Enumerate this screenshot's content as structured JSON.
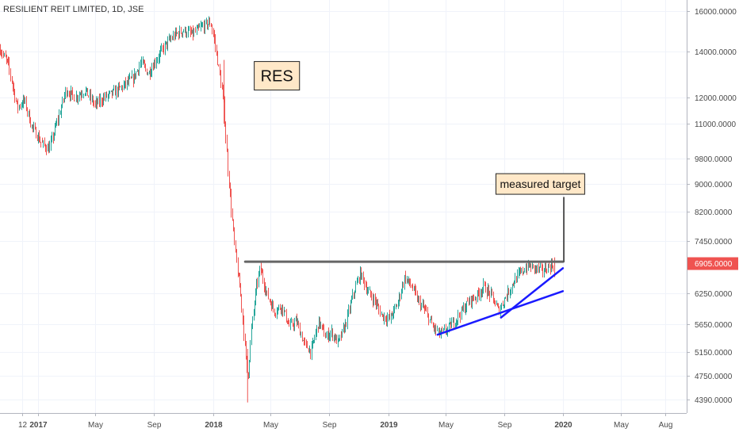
{
  "chart_data": {
    "type": "candlestick",
    "title": "RESILIENT REIT LIMITED, 1D, JSE",
    "y_scale": "log",
    "ylim": [
      4200,
      16600
    ],
    "y_ticks": [
      "16000.0000",
      "14000.0000",
      "12000.0000",
      "11000.0000",
      "9800.0000",
      "9000.0000",
      "8200.0000",
      "7450.0000",
      "6250.0000",
      "5650.0000",
      "5150.0000",
      "4750.0000",
      "4390.0000"
    ],
    "y_tick_values": [
      16000,
      14000,
      12000,
      11000,
      9800,
      9000,
      8200,
      7450,
      6250,
      5650,
      5150,
      4750,
      4390
    ],
    "x_ticks": [
      "12",
      "2017",
      "May",
      "Sep",
      "2018",
      "May",
      "Sep",
      "2019",
      "May",
      "Sep",
      "2020",
      "May",
      "Aug"
    ],
    "x_tick_dates": [
      "2016-12-01",
      "2017-01-02",
      "2017-05-01",
      "2017-09-01",
      "2018-01-02",
      "2018-05-01",
      "2018-09-01",
      "2019-01-02",
      "2019-05-01",
      "2019-09-01",
      "2020-01-02",
      "2020-05-01",
      "2020-08-01"
    ],
    "x_range": [
      "2016-10-15",
      "2020-09-15"
    ],
    "last_price": {
      "label": "6905.0000",
      "value": 6905,
      "color": "#ef5350"
    },
    "up_color": "#26a69a",
    "down_color": "#ef5350",
    "price_path": [
      [
        "2016-10-15",
        14100
      ],
      [
        "2016-11-01",
        13400
      ],
      [
        "2016-11-20",
        11600
      ],
      [
        "2016-12-05",
        11900
      ],
      [
        "2016-12-20",
        10900
      ],
      [
        "2017-01-10",
        10300
      ],
      [
        "2017-01-25",
        10100
      ],
      [
        "2017-02-15",
        11300
      ],
      [
        "2017-03-01",
        12300
      ],
      [
        "2017-03-20",
        12000
      ],
      [
        "2017-04-10",
        12300
      ],
      [
        "2017-05-01",
        11700
      ],
      [
        "2017-05-20",
        12000
      ],
      [
        "2017-06-10",
        12200
      ],
      [
        "2017-07-01",
        12500
      ],
      [
        "2017-07-20",
        12800
      ],
      [
        "2017-08-05",
        13500
      ],
      [
        "2017-08-20",
        13000
      ],
      [
        "2017-09-05",
        13600
      ],
      [
        "2017-09-25",
        14300
      ],
      [
        "2017-10-15",
        14800
      ],
      [
        "2017-11-01",
        15000
      ],
      [
        "2017-11-20",
        14800
      ],
      [
        "2017-12-10",
        15200
      ],
      [
        "2017-12-28",
        15400
      ],
      [
        "2018-01-05",
        14500
      ],
      [
        "2018-01-15",
        13000
      ],
      [
        "2018-01-25",
        11600
      ],
      [
        "2018-02-01",
        9700
      ],
      [
        "2018-02-08",
        8400
      ],
      [
        "2018-02-15",
        7400
      ],
      [
        "2018-02-22",
        6700
      ],
      [
        "2018-03-01",
        6200
      ],
      [
        "2018-03-08",
        5400
      ],
      [
        "2018-03-15",
        4700
      ],
      [
        "2018-03-22",
        5500
      ],
      [
        "2018-04-01",
        6300
      ],
      [
        "2018-04-10",
        6800
      ],
      [
        "2018-04-25",
        6200
      ],
      [
        "2018-05-10",
        5900
      ],
      [
        "2018-05-25",
        6000
      ],
      [
        "2018-06-10",
        5600
      ],
      [
        "2018-06-25",
        5700
      ],
      [
        "2018-07-10",
        5300
      ],
      [
        "2018-07-25",
        5150
      ],
      [
        "2018-08-10",
        5700
      ],
      [
        "2018-08-25",
        5400
      ],
      [
        "2018-09-05",
        5500
      ],
      [
        "2018-09-20",
        5300
      ],
      [
        "2018-10-05",
        5650
      ],
      [
        "2018-10-20",
        6200
      ],
      [
        "2018-11-05",
        6700
      ],
      [
        "2018-11-20",
        6300
      ],
      [
        "2018-12-05",
        6100
      ],
      [
        "2018-12-20",
        5800
      ],
      [
        "2019-01-05",
        5750
      ],
      [
        "2019-01-20",
        6000
      ],
      [
        "2019-02-05",
        6600
      ],
      [
        "2019-02-20",
        6400
      ],
      [
        "2019-03-05",
        6100
      ],
      [
        "2019-03-20",
        5900
      ],
      [
        "2019-04-05",
        5600
      ],
      [
        "2019-04-20",
        5450
      ],
      [
        "2019-05-05",
        5550
      ],
      [
        "2019-05-20",
        5700
      ],
      [
        "2019-06-05",
        5900
      ],
      [
        "2019-06-20",
        6100
      ],
      [
        "2019-07-05",
        6200
      ],
      [
        "2019-07-20",
        6400
      ],
      [
        "2019-08-05",
        6200
      ],
      [
        "2019-08-20",
        5900
      ],
      [
        "2019-09-05",
        6200
      ],
      [
        "2019-09-20",
        6500
      ],
      [
        "2019-10-05",
        6700
      ],
      [
        "2019-10-20",
        6850
      ],
      [
        "2019-11-05",
        6800
      ],
      [
        "2019-11-20",
        6750
      ],
      [
        "2019-12-05",
        6850
      ],
      [
        "2019-12-15",
        6905
      ]
    ],
    "resistance_line": {
      "from": [
        "2018-03-10",
        6950
      ],
      "to": [
        "2020-01-01",
        6950
      ],
      "color": "#666666"
    },
    "trendline_lower": {
      "from": [
        "2019-04-15",
        5450
      ],
      "to": [
        "2020-01-01",
        6300
      ],
      "color": "#1a1aff"
    },
    "trendline_upper": {
      "from": [
        "2019-08-25",
        5770
      ],
      "to": [
        "2020-01-01",
        6800
      ],
      "color": "#1a1aff"
    },
    "target_line": {
      "from": [
        "2020-01-03",
        6950
      ],
      "to": [
        "2020-01-03",
        8600
      ],
      "color": "#555555"
    },
    "annotations": [
      {
        "text": "RES",
        "date": "2018-05-15",
        "value": 12900
      },
      {
        "text": "measured target",
        "date": "2019-11-15",
        "value": 9000
      }
    ]
  }
}
